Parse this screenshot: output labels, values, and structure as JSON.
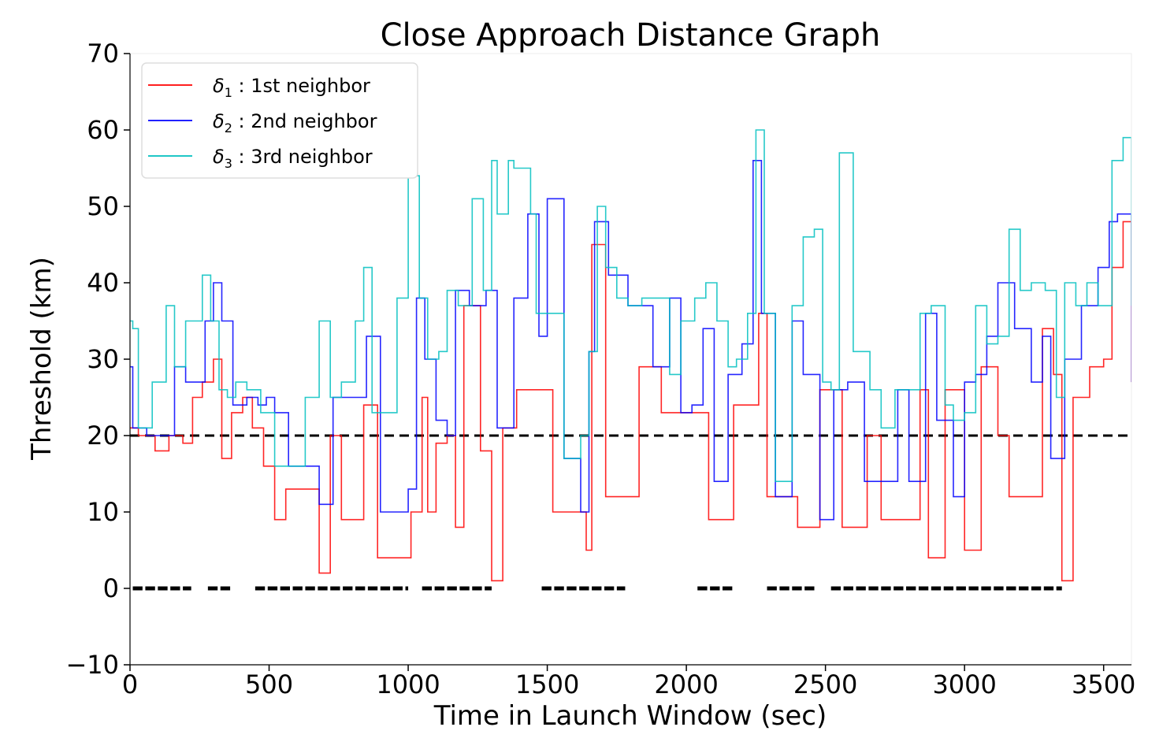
{
  "chart_data": {
    "type": "line",
    "title": "Close Approach Distance Graph",
    "xlabel": "Time in Launch Window (sec)",
    "ylabel": "Threshold (km)",
    "xlim": [
      0,
      3600
    ],
    "ylim": [
      -10,
      70
    ],
    "xticks": [
      "0",
      "500",
      "1000",
      "1500",
      "2000",
      "2500",
      "3000",
      "3500"
    ],
    "yticks": [
      "−10",
      "0",
      "10",
      "20",
      "30",
      "40",
      "50",
      "60",
      "70"
    ],
    "grid": false,
    "legend_position": "upper-left",
    "reference_line": {
      "y": 20,
      "style": "dashed",
      "color": "#000000"
    },
    "series": [
      {
        "name": "δ1 : 1st neighbor",
        "legend_symbol": "δ",
        "legend_sub": "1",
        "legend_rest": " : 1st neighbor",
        "color": "#ff0000",
        "step": true,
        "x": [
          0,
          30,
          90,
          140,
          190,
          225,
          260,
          300,
          330,
          365,
          405,
          440,
          480,
          520,
          560,
          610,
          680,
          720,
          760,
          820,
          840,
          890,
          950,
          1010,
          1050,
          1070,
          1100,
          1140,
          1170,
          1200,
          1260,
          1300,
          1340,
          1390,
          1470,
          1520,
          1600,
          1640,
          1660,
          1710,
          1790,
          1830,
          1870,
          1910,
          1980,
          2030,
          2080,
          2130,
          2170,
          2230,
          2260,
          2290,
          2380,
          2400,
          2450,
          2480,
          2560,
          2610,
          2650,
          2700,
          2770,
          2840,
          2870,
          2930,
          3000,
          3040,
          3060,
          3120,
          3160,
          3240,
          3280,
          3320,
          3350,
          3390,
          3450,
          3500,
          3530,
          3570,
          3600
        ],
        "y": [
          21,
          20,
          18,
          20,
          19,
          25,
          27,
          30,
          17,
          23,
          25,
          21,
          16,
          9,
          13,
          13,
          2,
          20,
          9,
          9,
          24,
          4,
          4,
          10,
          25,
          10,
          19,
          20,
          8,
          37,
          18,
          1,
          21,
          26,
          26,
          10,
          10,
          5,
          45,
          12,
          12,
          29,
          29,
          23,
          23,
          23,
          9,
          9,
          24,
          24,
          36,
          12,
          12,
          8,
          8,
          26,
          8,
          8,
          20,
          9,
          9,
          26,
          4,
          26,
          5,
          5,
          29,
          20,
          12,
          12,
          34,
          28,
          1,
          25,
          29,
          30,
          42,
          48,
          27
        ]
      },
      {
        "name": "δ2 : 2nd neighbor",
        "legend_symbol": "δ",
        "legend_sub": "2",
        "legend_rest": " : 2nd neighbor",
        "color": "#0000ff",
        "step": true,
        "x": [
          0,
          10,
          60,
          130,
          160,
          200,
          240,
          270,
          300,
          330,
          370,
          420,
          460,
          490,
          520,
          570,
          630,
          680,
          730,
          800,
          850,
          900,
          950,
          1000,
          1030,
          1060,
          1100,
          1140,
          1170,
          1220,
          1280,
          1320,
          1380,
          1430,
          1470,
          1500,
          1560,
          1620,
          1650,
          1670,
          1720,
          1790,
          1830,
          1880,
          1940,
          1980,
          2020,
          2060,
          2100,
          2150,
          2200,
          2240,
          2270,
          2320,
          2380,
          2420,
          2480,
          2530,
          2580,
          2640,
          2700,
          2760,
          2800,
          2860,
          2900,
          2960,
          3000,
          3040,
          3080,
          3120,
          3180,
          3240,
          3280,
          3310,
          3360,
          3390,
          3420,
          3480,
          3520,
          3550,
          3600
        ],
        "y": [
          29,
          21,
          20,
          20,
          29,
          27,
          27,
          35,
          40,
          35,
          24,
          25,
          24,
          25,
          23,
          16,
          16,
          11,
          25,
          25,
          33,
          10,
          10,
          13,
          38,
          30,
          22,
          20,
          39,
          37,
          39,
          21,
          38,
          49,
          33,
          51,
          17,
          10,
          31,
          48,
          41,
          37,
          37,
          29,
          38,
          23,
          24,
          34,
          14,
          28,
          32,
          56,
          36,
          12,
          35,
          28,
          9,
          26,
          27,
          14,
          14,
          26,
          14,
          36,
          22,
          12,
          27,
          28,
          33,
          40,
          34,
          27,
          33,
          17,
          30,
          30,
          37,
          42,
          48,
          49,
          27
        ]
      },
      {
        "name": "δ3 : 3rd neighbor",
        "legend_symbol": "δ",
        "legend_sub": "3",
        "legend_rest": " : 3rd neighbor",
        "color": "#00bfbf",
        "step": true,
        "x": [
          0,
          10,
          30,
          80,
          130,
          160,
          200,
          240,
          260,
          290,
          320,
          350,
          380,
          420,
          470,
          520,
          560,
          630,
          680,
          720,
          760,
          810,
          840,
          870,
          920,
          960,
          1000,
          1040,
          1070,
          1110,
          1140,
          1180,
          1230,
          1270,
          1300,
          1320,
          1360,
          1380,
          1440,
          1460,
          1490,
          1560,
          1620,
          1650,
          1680,
          1710,
          1750,
          1790,
          1840,
          1890,
          1940,
          1980,
          2030,
          2070,
          2110,
          2150,
          2180,
          2220,
          2250,
          2280,
          2320,
          2380,
          2420,
          2460,
          2490,
          2520,
          2550,
          2600,
          2630,
          2660,
          2700,
          2750,
          2790,
          2840,
          2880,
          2930,
          2960,
          3000,
          3040,
          3080,
          3120,
          3160,
          3200,
          3240,
          3290,
          3330,
          3360,
          3400,
          3440,
          3480,
          3530,
          3570,
          3600
        ],
        "y": [
          35,
          34,
          21,
          27,
          37,
          29,
          35,
          35,
          41,
          35,
          26,
          25,
          27,
          26,
          23,
          16,
          16,
          25,
          35,
          25,
          27,
          35,
          42,
          23,
          23,
          38,
          54,
          38,
          30,
          31,
          39,
          37,
          51,
          39,
          56,
          49,
          56,
          55,
          49,
          36,
          36,
          17,
          20,
          31,
          50,
          42,
          38,
          37,
          38,
          38,
          28,
          35,
          38,
          40,
          35,
          29,
          30,
          36,
          60,
          36,
          14,
          37,
          46,
          47,
          27,
          26,
          57,
          31,
          31,
          26,
          21,
          26,
          26,
          36,
          37,
          24,
          22,
          23,
          37,
          32,
          33,
          47,
          39,
          40,
          39,
          25,
          40,
          37,
          40,
          37,
          56,
          59,
          37
        ]
      }
    ],
    "zero_level_markers": {
      "y": 0,
      "color": "#000000",
      "segments": [
        [
          10,
          220
        ],
        [
          280,
          370
        ],
        [
          450,
          1000
        ],
        [
          1050,
          1300
        ],
        [
          1480,
          1780
        ],
        [
          2040,
          2170
        ],
        [
          2290,
          2460
        ],
        [
          2520,
          3350
        ]
      ]
    }
  }
}
